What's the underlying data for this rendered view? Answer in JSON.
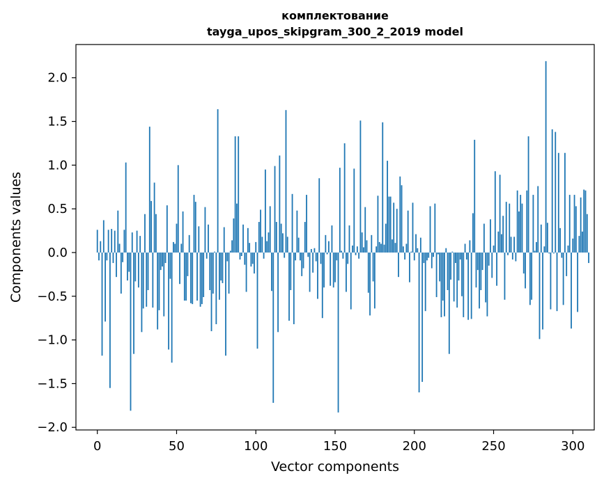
{
  "chart_data": {
    "type": "bar",
    "title": "комплектование",
    "subtitle": "tayga_upos_skipgram_300_2_2019 model",
    "xlabel": "Vector components",
    "ylabel": "Components values",
    "xlim": [
      -13.5,
      313.5
    ],
    "ylim": [
      -2.03,
      2.38
    ],
    "xticks": [
      0,
      50,
      100,
      150,
      200,
      250,
      300
    ],
    "yticks": [
      -2.0,
      -1.5,
      -1.0,
      -0.5,
      0.0,
      0.5,
      1.0,
      1.5,
      2.0
    ],
    "ytick_labels": [
      "−2.0",
      "−1.5",
      "−1.0",
      "−0.5",
      "0.0",
      "0.5",
      "1.0",
      "1.5",
      "2.0"
    ],
    "bar_color": "#1f77b4",
    "grid": false,
    "legend": false,
    "values": [
      0.26,
      -0.09,
      0.13,
      -1.18,
      0.37,
      -0.79,
      -0.09,
      0.26,
      -1.55,
      0.27,
      -0.12,
      0.25,
      -0.28,
      0.48,
      0.1,
      -0.47,
      -0.11,
      0.26,
      1.03,
      -0.32,
      -0.22,
      -1.81,
      0.23,
      -1.16,
      -0.33,
      0.25,
      -0.4,
      0.19,
      -0.91,
      -0.64,
      0.44,
      -0.62,
      -0.43,
      1.44,
      0.59,
      -0.63,
      0.8,
      0.44,
      -0.88,
      -0.66,
      -0.2,
      -0.16,
      -0.73,
      -0.12,
      0.54,
      -1.11,
      -0.3,
      -1.26,
      0.12,
      0.1,
      0.33,
      1.0,
      -0.36,
      0.1,
      0.47,
      -0.55,
      -0.55,
      -0.27,
      0.2,
      -0.58,
      -0.59,
      0.66,
      0.58,
      -0.55,
      0.3,
      -0.62,
      -0.59,
      -0.51,
      0.52,
      -0.07,
      0.32,
      -0.43,
      -0.9,
      -0.47,
      0.01,
      -0.82,
      1.64,
      -0.54,
      -0.32,
      -0.35,
      0.29,
      -1.18,
      -0.1,
      -0.47,
      0.02,
      0.14,
      0.39,
      1.33,
      0.56,
      1.33,
      -0.08,
      -0.04,
      0.32,
      -0.14,
      -0.45,
      0.28,
      0.11,
      -0.16,
      -0.13,
      -0.24,
      0.12,
      -1.1,
      0.35,
      0.49,
      0.18,
      -0.07,
      0.95,
      0.13,
      0.23,
      0.53,
      -0.44,
      -1.72,
      0.99,
      0.35,
      -0.91,
      1.11,
      0.33,
      0.22,
      -0.06,
      1.63,
      0.18,
      -0.78,
      -0.43,
      0.67,
      -0.82,
      -0.09,
      0.48,
      0.17,
      -0.09,
      -0.27,
      -0.18,
      0.35,
      0.66,
      -0.05,
      -0.45,
      0.04,
      -0.23,
      0.05,
      -0.1,
      -0.53,
      0.85,
      -0.13,
      -0.75,
      -0.4,
      0.2,
      -0.02,
      0.13,
      -0.38,
      0.31,
      -0.4,
      -0.34,
      -0.09,
      -1.83,
      0.97,
      0.02,
      -0.07,
      1.25,
      -0.45,
      -0.13,
      0.31,
      -0.65,
      0.08,
      0.96,
      -0.03,
      0.07,
      -0.07,
      1.51,
      0.23,
      0.06,
      0.52,
      0.14,
      -0.46,
      -0.72,
      0.2,
      -0.33,
      -0.64,
      0.07,
      0.65,
      0.12,
      0.1,
      1.49,
      0.09,
      0.33,
      1.05,
      0.64,
      0.64,
      0.15,
      0.57,
      0.11,
      0.5,
      -0.28,
      0.87,
      0.77,
      0.07,
      -0.08,
      0.1,
      0.48,
      -0.34,
      0.01,
      0.57,
      -0.09,
      0.21,
      0.05,
      -1.6,
      0.17,
      -1.48,
      -0.12,
      -0.67,
      -0.09,
      -0.06,
      0.53,
      -0.18,
      -0.05,
      0.56,
      -0.51,
      -0.02,
      -0.33,
      -0.74,
      -0.55,
      -0.73,
      0.05,
      -0.43,
      -1.16,
      -0.31,
      0.01,
      -0.56,
      -0.12,
      -0.63,
      -0.32,
      -0.08,
      -0.5,
      -0.74,
      0.1,
      -0.08,
      -0.77,
      0.14,
      -0.76,
      0.45,
      1.29,
      -0.4,
      -0.2,
      -0.64,
      -0.43,
      -0.2,
      0.33,
      -0.57,
      -0.73,
      -0.15,
      0.38,
      -0.29,
      0.08,
      0.93,
      -0.38,
      0.24,
      0.89,
      0.21,
      0.42,
      -0.54,
      0.58,
      -0.03,
      0.56,
      0.18,
      -0.08,
      0.18,
      -0.1,
      0.71,
      0.47,
      0.66,
      0.56,
      -0.24,
      -0.41,
      0.71,
      1.33,
      -0.6,
      -0.54,
      0.66,
      0.02,
      0.12,
      0.76,
      -0.99,
      0.32,
      -0.88,
      0.07,
      2.19,
      0.34,
      -0.01,
      -0.65,
      1.41,
      -0.01,
      1.38,
      -0.67,
      1.14,
      0.28,
      -0.06,
      -0.6,
      1.14,
      -0.27,
      0.08,
      0.66,
      -0.87,
      0.16,
      0.66,
      0.53,
      -0.68,
      0.19,
      0.63,
      0.24,
      0.72,
      0.71,
      0.44,
      -0.12
    ]
  }
}
